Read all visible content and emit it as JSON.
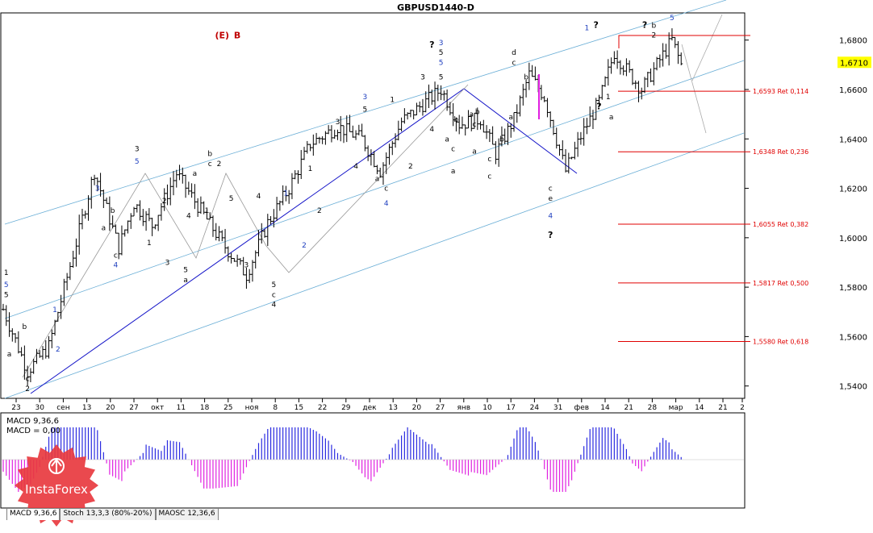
{
  "chart_data": {
    "type": "line",
    "title": "GBPUSD1440-D",
    "price_axis": {
      "min": 1.535,
      "max": 1.691,
      "ticks": [
        "1,6800",
        "1,6600",
        "1,6400",
        "1,6200",
        "1,6000",
        "1,5800",
        "1,5600",
        "1,5400"
      ],
      "tick_values": [
        1.68,
        1.66,
        1.64,
        1.62,
        1.6,
        1.58,
        1.56,
        1.54
      ],
      "current_price_label": "1,6710",
      "current_price": 1.671
    },
    "date_axis_labels": [
      "23",
      "30",
      "сен",
      "13",
      "20",
      "27",
      "окт",
      "11",
      "18",
      "25",
      "ноя",
      "8",
      "15",
      "22",
      "29",
      "дек",
      "13",
      "20",
      "27",
      "янв",
      "10",
      "17",
      "24",
      "31",
      "фев",
      "14",
      "21",
      "28",
      "мар",
      "14",
      "21",
      "2"
    ],
    "retracement_levels": [
      {
        "value": 1.6593,
        "label": "1,6593 Ret 0,114"
      },
      {
        "value": 1.6348,
        "label": "1,6348 Ret 0,236"
      },
      {
        "value": 1.6055,
        "label": "1,6055 Ret 0,382"
      },
      {
        "value": 1.5817,
        "label": "1,5817 Ret 0,500"
      },
      {
        "value": 1.558,
        "label": "1,5580 Ret 0,618"
      }
    ],
    "swing_path": [
      [
        0,
        1.571
      ],
      [
        8,
        1.546
      ],
      [
        15,
        1.556
      ],
      [
        24,
        1.598
      ],
      [
        30,
        1.627
      ],
      [
        38,
        1.596
      ],
      [
        43,
        1.614
      ],
      [
        49,
        1.605
      ],
      [
        57,
        1.626
      ],
      [
        64,
        1.613
      ],
      [
        72,
        1.598
      ],
      [
        80,
        1.585
      ],
      [
        87,
        1.606
      ],
      [
        94,
        1.62
      ],
      [
        101,
        1.638
      ],
      [
        110,
        1.645
      ],
      [
        118,
        1.64
      ],
      [
        124,
        1.627
      ],
      [
        131,
        1.647
      ],
      [
        138,
        1.654
      ],
      [
        144,
        1.66
      ],
      [
        150,
        1.646
      ],
      [
        157,
        1.648
      ],
      [
        162,
        1.634
      ],
      [
        168,
        1.648
      ],
      [
        173,
        1.666
      ],
      [
        178,
        1.657
      ],
      [
        185,
        1.627
      ],
      [
        190,
        1.641
      ],
      [
        196,
        1.655
      ],
      [
        201,
        1.675
      ],
      [
        205,
        1.668
      ],
      [
        210,
        1.66
      ],
      [
        216,
        1.672
      ],
      [
        220,
        1.68
      ],
      [
        223,
        1.67
      ]
    ],
    "wave_labels": [
      {
        "text": "(E)",
        "color": "#c00000",
        "bar": 72,
        "price": 1.6808
      },
      {
        "text": "B",
        "color": "#c00000",
        "bar": 77,
        "price": 1.6808
      },
      {
        "text": "1",
        "color": "#000000",
        "bar": 1,
        "price": 1.585
      },
      {
        "text": "5",
        "color": "#1f3fbf",
        "bar": 1,
        "price": 1.58
      },
      {
        "text": "5",
        "color": "#000000",
        "bar": 1,
        "price": 1.576
      },
      {
        "text": "a",
        "color": "#000000",
        "bar": 2,
        "price": 1.552
      },
      {
        "text": "b",
        "color": "#000000",
        "bar": 7,
        "price": 1.563
      },
      {
        "text": "c",
        "color": "#000000",
        "bar": 8,
        "price": 1.542
      },
      {
        "text": "2",
        "color": "#000000",
        "bar": 8,
        "price": 1.538
      },
      {
        "text": "1",
        "color": "#1f3fbf",
        "bar": 17,
        "price": 1.57
      },
      {
        "text": "2",
        "color": "#1f3fbf",
        "bar": 18,
        "price": 1.554
      },
      {
        "text": "3",
        "color": "#1f3fbf",
        "bar": 31,
        "price": 1.619
      },
      {
        "text": "b",
        "color": "#000000",
        "bar": 36,
        "price": 1.61
      },
      {
        "text": "c",
        "color": "#000000",
        "bar": 37,
        "price": 1.592
      },
      {
        "text": "4",
        "color": "#1f3fbf",
        "bar": 37,
        "price": 1.588
      },
      {
        "text": "a",
        "color": "#000000",
        "bar": 33,
        "price": 1.603
      },
      {
        "text": "3",
        "color": "#000000",
        "bar": 44,
        "price": 1.635
      },
      {
        "text": "5",
        "color": "#1f3fbf",
        "bar": 44,
        "price": 1.63
      },
      {
        "text": "1",
        "color": "#000000",
        "bar": 48,
        "price": 1.597
      },
      {
        "text": "2",
        "color": "#000000",
        "bar": 53,
        "price": 1.614
      },
      {
        "text": "3",
        "color": "#000000",
        "bar": 54,
        "price": 1.589
      },
      {
        "text": "4",
        "color": "#000000",
        "bar": 61,
        "price": 1.608
      },
      {
        "text": "5",
        "color": "#000000",
        "bar": 60,
        "price": 1.586
      },
      {
        "text": "a",
        "color": "#000000",
        "bar": 60,
        "price": 1.582
      },
      {
        "text": "a",
        "color": "#000000",
        "bar": 63,
        "price": 1.625
      },
      {
        "text": "b",
        "color": "#000000",
        "bar": 68,
        "price": 1.633
      },
      {
        "text": "c",
        "color": "#000000",
        "bar": 68,
        "price": 1.629
      },
      {
        "text": "2",
        "color": "#000000",
        "bar": 71,
        "price": 1.629
      },
      {
        "text": "1",
        "color": "#000000",
        "bar": 67,
        "price": 1.61
      },
      {
        "text": "5",
        "color": "#000000",
        "bar": 75,
        "price": 1.615
      },
      {
        "text": "3",
        "color": "#000000",
        "bar": 80,
        "price": 1.588
      },
      {
        "text": "4",
        "color": "#000000",
        "bar": 84,
        "price": 1.616
      },
      {
        "text": "1",
        "color": "#1f3fbf",
        "bar": 93,
        "price": 1.617
      },
      {
        "text": "2",
        "color": "#1f3fbf",
        "bar": 99,
        "price": 1.596
      },
      {
        "text": "5",
        "color": "#000000",
        "bar": 89,
        "price": 1.58
      },
      {
        "text": "c",
        "color": "#000000",
        "bar": 89,
        "price": 1.576
      },
      {
        "text": "4",
        "color": "#000000",
        "bar": 89,
        "price": 1.572
      },
      {
        "text": "1",
        "color": "#000000",
        "bar": 101,
        "price": 1.627
      },
      {
        "text": "2",
        "color": "#000000",
        "bar": 104,
        "price": 1.61
      },
      {
        "text": "3",
        "color": "#000000",
        "bar": 110,
        "price": 1.646
      },
      {
        "text": "4",
        "color": "#000000",
        "bar": 116,
        "price": 1.628
      },
      {
        "text": "3",
        "color": "#1f3fbf",
        "bar": 119,
        "price": 1.656
      },
      {
        "text": "5",
        "color": "#000000",
        "bar": 119,
        "price": 1.651
      },
      {
        "text": "a",
        "color": "#000000",
        "bar": 123,
        "price": 1.623
      },
      {
        "text": "c",
        "color": "#000000",
        "bar": 126,
        "price": 1.619
      },
      {
        "text": "4",
        "color": "#1f3fbf",
        "bar": 126,
        "price": 1.613
      },
      {
        "text": "1",
        "color": "#000000",
        "bar": 128,
        "price": 1.655
      },
      {
        "text": "2",
        "color": "#000000",
        "bar": 134,
        "price": 1.628
      },
      {
        "text": "3",
        "color": "#000000",
        "bar": 138,
        "price": 1.664
      },
      {
        "text": "5",
        "color": "#000000",
        "bar": 144,
        "price": 1.664
      },
      {
        "text": "?",
        "color": "#000000",
        "bar": 141,
        "price": 1.677
      },
      {
        "text": "5",
        "color": "#000000",
        "bar": 144,
        "price": 1.674
      },
      {
        "text": "3",
        "color": "#1f3fbf",
        "bar": 144,
        "price": 1.678
      },
      {
        "text": "5",
        "color": "#1f3fbf",
        "bar": 144,
        "price": 1.67
      },
      {
        "text": "4",
        "color": "#000000",
        "bar": 141,
        "price": 1.643
      },
      {
        "text": "a",
        "color": "#000000",
        "bar": 146,
        "price": 1.639
      },
      {
        "text": "c",
        "color": "#000000",
        "bar": 148,
        "price": 1.635
      },
      {
        "text": "b",
        "color": "#000000",
        "bar": 149,
        "price": 1.647
      },
      {
        "text": "a",
        "color": "#000000",
        "bar": 148,
        "price": 1.626
      },
      {
        "text": "a",
        "color": "#000000",
        "bar": 154,
        "price": 1.649
      },
      {
        "text": "c",
        "color": "#000000",
        "bar": 155,
        "price": 1.645
      },
      {
        "text": "b",
        "color": "#000000",
        "bar": 156,
        "price": 1.65
      },
      {
        "text": "a",
        "color": "#000000",
        "bar": 155,
        "price": 1.634
      },
      {
        "text": "c",
        "color": "#000000",
        "bar": 160,
        "price": 1.631
      },
      {
        "text": "c",
        "color": "#000000",
        "bar": 160,
        "price": 1.624
      },
      {
        "text": "b",
        "color": "#000000",
        "bar": 164,
        "price": 1.639
      },
      {
        "text": "d",
        "color": "#000000",
        "bar": 168,
        "price": 1.674
      },
      {
        "text": "c",
        "color": "#000000",
        "bar": 168,
        "price": 1.67
      },
      {
        "text": "b",
        "color": "#000000",
        "bar": 172,
        "price": 1.664
      },
      {
        "text": "a",
        "color": "#000000",
        "bar": 167,
        "price": 1.648
      },
      {
        "text": "c",
        "color": "#000000",
        "bar": 180,
        "price": 1.619
      },
      {
        "text": "e",
        "color": "#000000",
        "bar": 180,
        "price": 1.615
      },
      {
        "text": "4",
        "color": "#1f3fbf",
        "bar": 180,
        "price": 1.608
      },
      {
        "text": "?",
        "color": "#000000",
        "bar": 180,
        "price": 1.6
      },
      {
        "text": "1",
        "color": "#1f3fbf",
        "bar": 192,
        "price": 1.684
      },
      {
        "text": "?",
        "color": "#000000",
        "bar": 195,
        "price": 1.685
      },
      {
        "text": "?",
        "color": "#000000",
        "bar": 196,
        "price": 1.652
      },
      {
        "text": "1",
        "color": "#000000",
        "bar": 199,
        "price": 1.656
      },
      {
        "text": "a",
        "color": "#000000",
        "bar": 200,
        "price": 1.648
      },
      {
        "text": "?",
        "color": "#000000",
        "bar": 211,
        "price": 1.685
      },
      {
        "text": "b",
        "color": "#000000",
        "bar": 214,
        "price": 1.685
      },
      {
        "text": "2",
        "color": "#000000",
        "bar": 214,
        "price": 1.681
      },
      {
        "text": "5",
        "color": "#1f3fbf",
        "bar": 220,
        "price": 1.688
      }
    ],
    "macd": {
      "label": "MACD 9,36,6",
      "sublabel": "MACD = 0,00"
    },
    "indicator_tabs": [
      "MACD 9,36,6",
      "Stoch 13,3,3 (80%-20%)",
      "MAOSC 12,36,6"
    ],
    "colors": {
      "bars": "#000000",
      "retracement": "#e00000",
      "channel": "#6aaed6",
      "trend": "#1414c8",
      "macd_pos": "#2a2ae0",
      "macd_neg": "#e020e0",
      "label_blue": "#1f3fbf"
    }
  },
  "branding": {
    "logo_text": "InstaForex",
    "logo_color": "#e8393f"
  }
}
